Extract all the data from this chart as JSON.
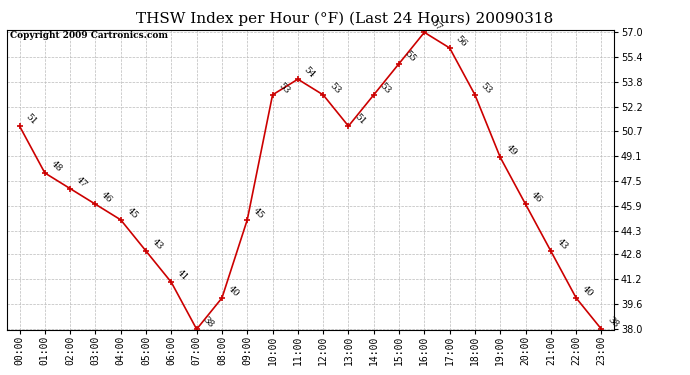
{
  "title": "THSW Index per Hour (°F) (Last 24 Hours) 20090318",
  "copyright": "Copyright 2009 Cartronics.com",
  "hours": [
    "00:00",
    "01:00",
    "02:00",
    "03:00",
    "04:00",
    "05:00",
    "06:00",
    "07:00",
    "08:00",
    "09:00",
    "10:00",
    "11:00",
    "12:00",
    "13:00",
    "14:00",
    "15:00",
    "16:00",
    "17:00",
    "18:00",
    "19:00",
    "20:00",
    "21:00",
    "22:00",
    "23:00"
  ],
  "values": [
    51,
    48,
    47,
    46,
    45,
    43,
    41,
    38,
    40,
    45,
    53,
    54,
    53,
    51,
    53,
    55,
    57,
    56,
    53,
    49,
    46,
    43,
    40,
    38
  ],
  "line_color": "#cc0000",
  "marker_color": "#cc0000",
  "bg_color": "#ffffff",
  "plot_bg_color": "#ffffff",
  "grid_color": "#bbbbbb",
  "ylim_min": 38.0,
  "ylim_max": 57.0,
  "yticks": [
    57.0,
    55.4,
    53.8,
    52.2,
    50.7,
    49.1,
    47.5,
    45.9,
    44.3,
    42.8,
    41.2,
    39.6,
    38.0
  ],
  "title_fontsize": 11,
  "label_fontsize": 7,
  "copyright_fontsize": 6.5,
  "annot_fontsize": 6.5
}
